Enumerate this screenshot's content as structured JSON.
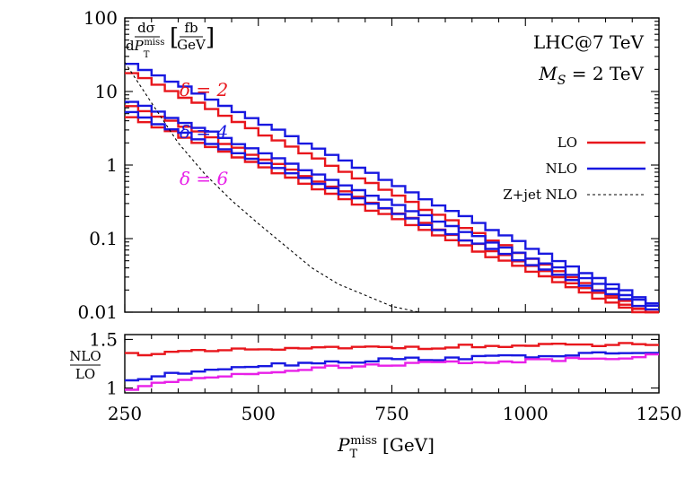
{
  "chart_data": [
    {
      "type": "line",
      "panel": "main",
      "ylabel": {
        "num": "dσ",
        "den_d": "d",
        "den_P": "P",
        "den_sup": "miss",
        "den_sub": "T",
        "unit_num": "fb",
        "unit_den": "GeV"
      },
      "annotations": {
        "machine": "LHC@7 TeV",
        "mass_sym": "M",
        "mass_sub": "S",
        "mass_val": " = 2 TeV",
        "delta2": "δ = 2",
        "delta4": "δ = 4",
        "delta6": "δ = 6"
      },
      "xlim": [
        250,
        1250
      ],
      "ylim": [
        0.01,
        100
      ],
      "yscale": "log",
      "y_ticks": [
        "100",
        "10",
        "1",
        "0.1",
        "0.01"
      ],
      "y_tick_values": [
        100,
        10,
        1,
        0.1,
        0.01
      ],
      "bin_width": 25,
      "legend": {
        "placement": "right",
        "entries": [
          {
            "label": "LO",
            "color": "#e8161c",
            "style": "solid"
          },
          {
            "label": "NLO",
            "color": "#1818e0",
            "style": "solid"
          },
          {
            "label": "Z+jet NLO",
            "color": "#000000",
            "style": "dashed"
          }
        ]
      },
      "series": [
        {
          "delta": 2,
          "order": "LO",
          "color": "#e8161c",
          "y_start": 20,
          "y_end": 0.0085
        },
        {
          "delta": 2,
          "order": "NLO",
          "color": "#1818e0",
          "y_start": 27,
          "y_end": 0.012
        },
        {
          "delta": 4,
          "order": "LO",
          "color": "#e8161c",
          "y_start": 7.0,
          "y_end": 0.0085
        },
        {
          "delta": 4,
          "order": "NLO",
          "color": "#1818e0",
          "y_start": 8.0,
          "y_end": 0.0115
        },
        {
          "delta": 6,
          "order": "LO",
          "color": "#e8161c",
          "y_start": 5.0,
          "y_end": 0.0075
        },
        {
          "delta": 6,
          "order": "NLO",
          "color": "#1818e0",
          "y_start": 5.5,
          "y_end": 0.0098
        }
      ],
      "zjet": {
        "x": [
          250,
          300,
          350,
          400,
          450,
          500,
          550,
          600,
          650,
          700,
          750,
          800,
          850
        ],
        "y": [
          25,
          7.0,
          2.0,
          0.75,
          0.33,
          0.16,
          0.08,
          0.04,
          0.024,
          0.017,
          0.012,
          0.0088,
          0.0062
        ]
      }
    },
    {
      "type": "line",
      "panel": "ratio",
      "ylabel": {
        "num": "NLO",
        "den": "LO"
      },
      "xlabel": {
        "P": "P",
        "sup": "miss",
        "sub": "T",
        "unit": "[GeV]"
      },
      "xlim": [
        250,
        1250
      ],
      "ylim": [
        0.95,
        1.55
      ],
      "x_ticks": [
        "250",
        "500",
        "750",
        "1000",
        "1250"
      ],
      "x_tick_values": [
        250,
        500,
        750,
        1000,
        1250
      ],
      "y_ticks": [
        "1.5",
        "1"
      ],
      "y_tick_values": [
        1.5,
        1.0
      ],
      "series": [
        {
          "delta": 2,
          "color": "#e8161c",
          "ratio": [
            1.35,
            1.36,
            1.37,
            1.38,
            1.39,
            1.4,
            1.4,
            1.41,
            1.41,
            1.42,
            1.42,
            1.42,
            1.43,
            1.43,
            1.43,
            1.44,
            1.44,
            1.44,
            1.45,
            1.45
          ]
        },
        {
          "delta": 4,
          "color": "#1818e0",
          "ratio": [
            1.08,
            1.12,
            1.16,
            1.2,
            1.22,
            1.24,
            1.25,
            1.27,
            1.27,
            1.29,
            1.3,
            1.3,
            1.31,
            1.32,
            1.33,
            1.33,
            1.34,
            1.35,
            1.36,
            1.37
          ]
        },
        {
          "delta": 6,
          "color": "#e820e8",
          "ratio": [
            0.99,
            1.04,
            1.09,
            1.12,
            1.15,
            1.17,
            1.19,
            1.21,
            1.22,
            1.24,
            1.25,
            1.26,
            1.27,
            1.27,
            1.28,
            1.29,
            1.3,
            1.31,
            1.32,
            1.33
          ]
        }
      ]
    }
  ]
}
